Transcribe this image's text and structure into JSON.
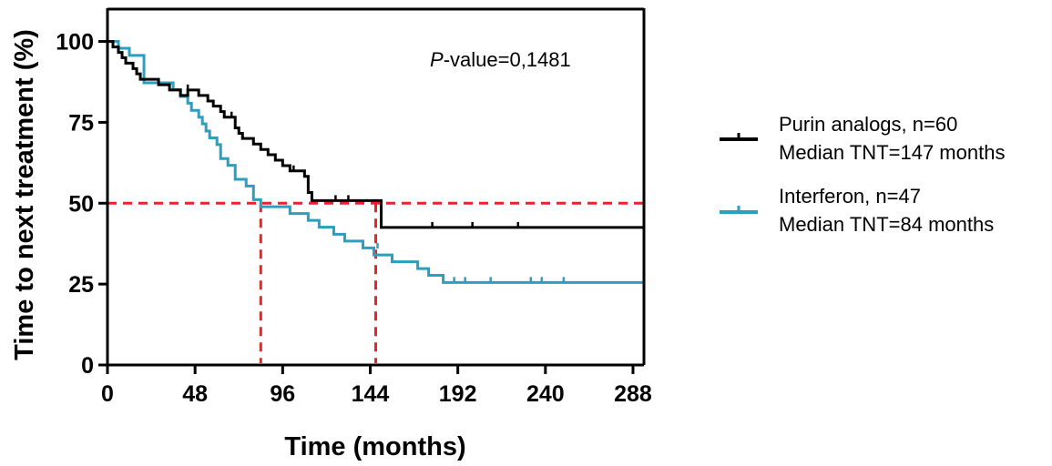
{
  "chart_data": {
    "type": "line",
    "subtype": "kaplan-meier",
    "xlabel": "Time (months)",
    "ylabel": "Time to next treatment (%)",
    "xlim": [
      0,
      294
    ],
    "ylim": [
      0,
      110
    ],
    "xticks": [
      0,
      48,
      96,
      144,
      192,
      240,
      288
    ],
    "yticks": [
      0,
      25,
      50,
      75,
      100
    ],
    "grid": false,
    "legend_position": "right",
    "annotation": {
      "italic": "P",
      "text": "-value=0,1481"
    },
    "median_line": {
      "y": 50,
      "x_values": [
        84,
        147
      ],
      "color": "#ee2222"
    },
    "series": [
      {
        "name": "Purin analogs, n=60",
        "label2": "Median TNT=147 months",
        "color": "#000000",
        "x": [
          0,
          3,
          6,
          8,
          10,
          14,
          16,
          18,
          22,
          28,
          34,
          40,
          44,
          50,
          55,
          58,
          62,
          64,
          66,
          70,
          72,
          74,
          80,
          84,
          88,
          90,
          92,
          96,
          100,
          104,
          108,
          110,
          112,
          150,
          294
        ],
        "y": [
          100,
          98.3,
          96.6,
          95,
          93.3,
          91.6,
          90,
          88.3,
          88.3,
          86.6,
          85,
          83.3,
          85,
          83.3,
          81.6,
          80,
          78.3,
          76.6,
          76.6,
          73.3,
          71.6,
          70,
          68.3,
          66.6,
          65,
          65,
          63.3,
          61.6,
          60,
          60,
          58.3,
          53.3,
          50.8,
          42.5,
          42.5
        ],
        "censored": [
          [
            44,
            85
          ],
          [
            68,
            76.6
          ],
          [
            102,
            60
          ],
          [
            125,
            50.8
          ],
          [
            132,
            50.8
          ],
          [
            178,
            42.5
          ],
          [
            200,
            42.5
          ],
          [
            225,
            42.5
          ]
        ]
      },
      {
        "name": "Interferon, n=47",
        "label2": "Median TNT=84 months",
        "color": "#2a9fbf",
        "x": [
          0,
          6,
          12,
          20,
          30,
          36,
          40,
          44,
          46,
          50,
          52,
          54,
          56,
          60,
          62,
          66,
          70,
          76,
          80,
          84,
          90,
          100,
          110,
          116,
          124,
          130,
          134,
          140,
          146,
          150,
          156,
          160,
          170,
          176,
          180,
          184,
          294
        ],
        "y": [
          100,
          97.9,
          95.7,
          87.2,
          87.2,
          85.1,
          83,
          80.9,
          78.7,
          76.6,
          74.5,
          72.3,
          70.2,
          68.1,
          63.8,
          61.7,
          57.4,
          55.3,
          51.1,
          48.9,
          48.9,
          46.8,
          44.7,
          42.6,
          40.4,
          38.3,
          38.3,
          36.2,
          34,
          34,
          31.9,
          31.9,
          29.8,
          27.7,
          27.7,
          25.5,
          25.5
        ],
        "censored": [
          [
            148,
            36
          ],
          [
            190,
            25.5
          ],
          [
            196,
            25.5
          ],
          [
            210,
            25.5
          ],
          [
            232,
            25.5
          ],
          [
            238,
            25.5
          ],
          [
            250,
            25.5
          ]
        ]
      }
    ]
  }
}
